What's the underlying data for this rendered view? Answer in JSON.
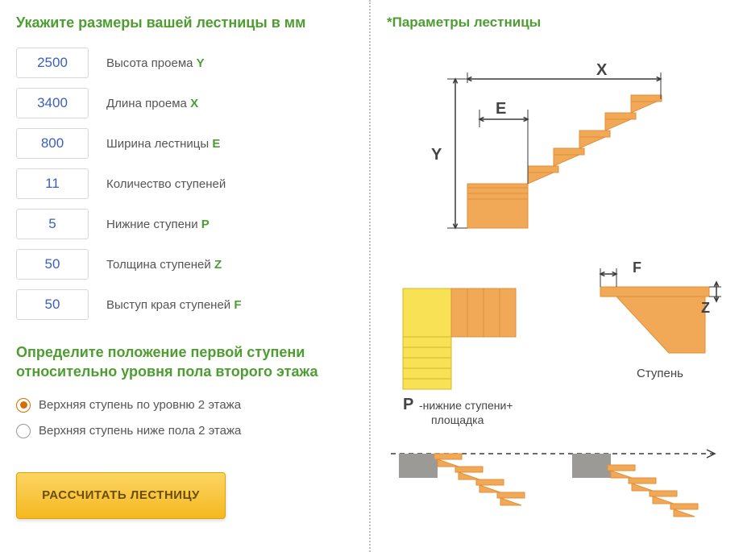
{
  "titles": {
    "dimensions": "Укажите размеры вашей лестницы в мм",
    "position": "Определите положение первой ступени относительно уровня пола второго этажа",
    "params": "*Параметры лестницы"
  },
  "fields": [
    {
      "key": "Y",
      "value": "2500",
      "label": "Высота проема",
      "letter": "Y"
    },
    {
      "key": "X",
      "value": "3400",
      "label": "Длина проема",
      "letter": "X"
    },
    {
      "key": "E",
      "value": "800",
      "label": "Ширина лестницы",
      "letter": "E"
    },
    {
      "key": "N",
      "value": "11",
      "label": "Количество ступеней",
      "letter": ""
    },
    {
      "key": "P",
      "value": "5",
      "label": "Нижние ступени",
      "letter": "P"
    },
    {
      "key": "Z",
      "value": "50",
      "label": "Толщина ступеней",
      "letter": "Z"
    },
    {
      "key": "F",
      "value": "50",
      "label": "Выступ края ступеней",
      "letter": "F"
    }
  ],
  "radios": [
    {
      "label": "Верхняя ступень по уровню 2 этажа",
      "selected": true
    },
    {
      "label": "Верхняя ступень ниже пола 2 этажа",
      "selected": false
    }
  ],
  "button": {
    "label": "РАССЧИТАТЬ ЛЕСТНИЦУ"
  },
  "diagram": {
    "letters": {
      "Y": "Y",
      "X": "X",
      "E": "E",
      "F": "F",
      "Z": "Z",
      "P": "P"
    },
    "labels": {
      "step": "Ступень",
      "lower_steps": "-нижние ступени+\nплощадка"
    },
    "colors": {
      "stair": "#f2a957",
      "stair_dark": "#e08f3a",
      "platform": "#f8e155",
      "platform_border": "#d5b82a",
      "floor": "#9b9a96",
      "text": "#444444",
      "green_letter": "#4d9e30",
      "dim_line": "#3a3a3a"
    }
  }
}
